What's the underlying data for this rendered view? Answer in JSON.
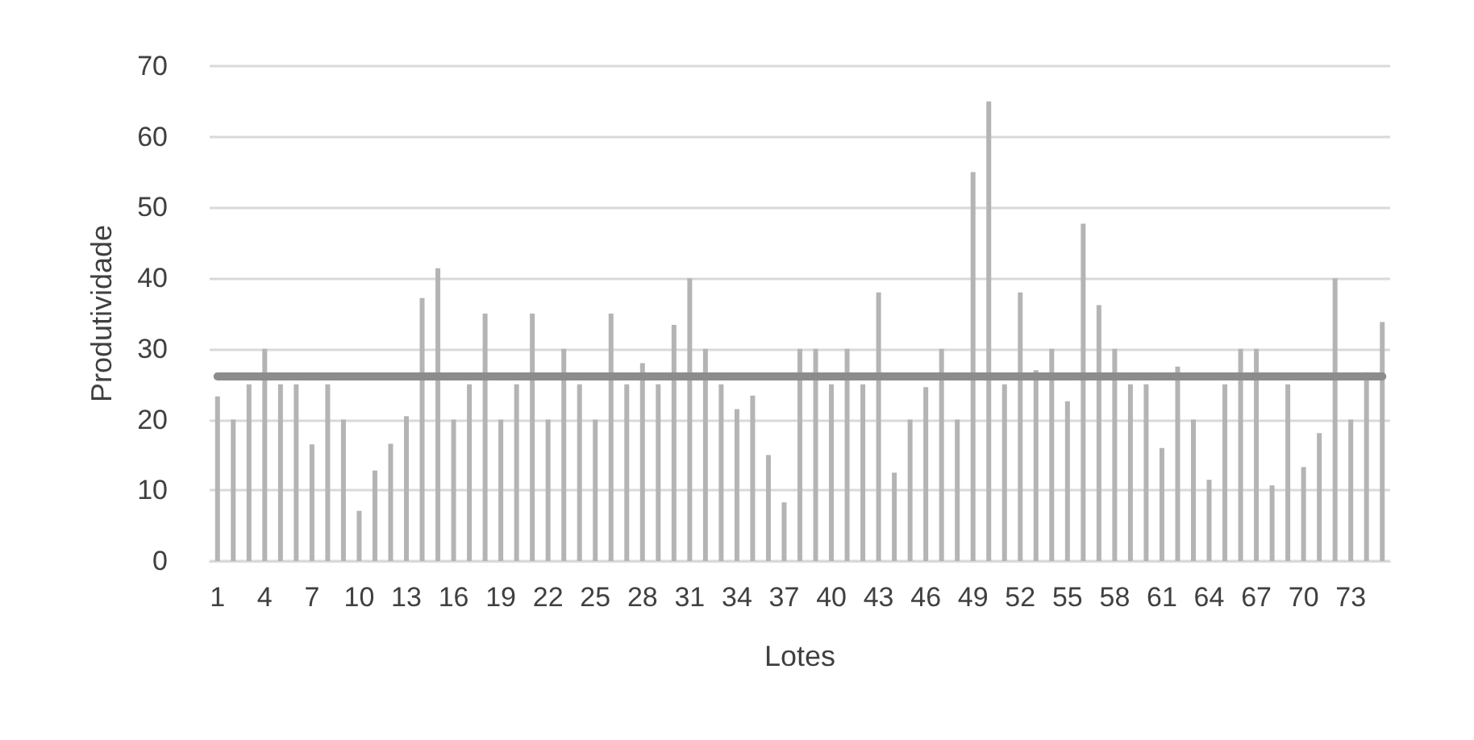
{
  "chart_data": {
    "type": "bar",
    "xlabel": "Lotes",
    "ylabel": "Produtividade",
    "categories": [
      "1",
      null,
      null,
      "4",
      null,
      null,
      "7",
      null,
      null,
      "10",
      null,
      null,
      "13",
      null,
      null,
      "16",
      null,
      null,
      "19",
      null,
      null,
      "22",
      null,
      null,
      "25",
      null,
      null,
      "28",
      null,
      null,
      "31",
      null,
      null,
      "34",
      null,
      null,
      "37",
      null,
      null,
      "40",
      null,
      null,
      "43",
      null,
      null,
      "46",
      null,
      null,
      "49",
      null,
      null,
      "52",
      null,
      null,
      "55",
      null,
      null,
      "58",
      null,
      null,
      "61",
      null,
      null,
      "64",
      null,
      null,
      "67",
      null,
      null,
      "70",
      null,
      null,
      "73",
      null,
      null
    ],
    "values": [
      23.3,
      20,
      25,
      30,
      25,
      25,
      16.5,
      25,
      20,
      7.1,
      12.8,
      16.6,
      20.5,
      37.2,
      41.4,
      20,
      25,
      35,
      20,
      25,
      35,
      20,
      30,
      25,
      20,
      35,
      25,
      28,
      25,
      33.4,
      40,
      30,
      25,
      21.5,
      23.4,
      15,
      8.3,
      30,
      30,
      25,
      30,
      25,
      38,
      12.5,
      20,
      24.6,
      30,
      20,
      55,
      65,
      25,
      38,
      27,
      30,
      22.6,
      47.7,
      36.2,
      30,
      25,
      25,
      16,
      27.5,
      20,
      11.5,
      25,
      30,
      30,
      10.7,
      25,
      13.3,
      18.1,
      40,
      20,
      26.7,
      33.8
    ],
    "color": "#b4b4b4",
    "ylim": [
      0,
      70
    ],
    "yticks": [
      0,
      10,
      20,
      30,
      40,
      50,
      60,
      70
    ],
    "grid": "y",
    "ref_lines": [
      {
        "axis": "y",
        "value": 26.2,
        "color": "#8c8c8c"
      }
    ]
  }
}
